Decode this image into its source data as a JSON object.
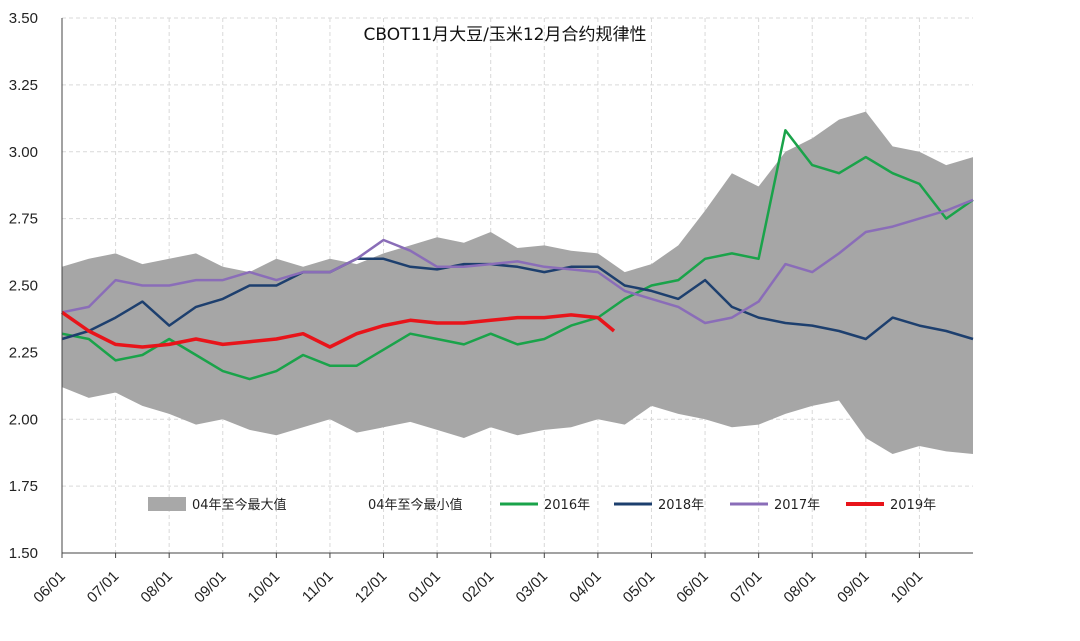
{
  "chart_data": {
    "type": "area",
    "title": "CBOT11月大豆/玉米12月合约规律性",
    "ylim": [
      1.5,
      3.5
    ],
    "yticks": [
      "1.50",
      "1.75",
      "2.00",
      "2.25",
      "2.50",
      "2.75",
      "3.00",
      "3.25",
      "3.50"
    ],
    "categories": [
      "06/01",
      "07/01",
      "08/01",
      "09/01",
      "10/01",
      "11/01",
      "12/01",
      "01/01",
      "02/01",
      "03/01",
      "04/01",
      "05/01",
      "06/01",
      "07/01",
      "08/01",
      "09/01",
      "10/01"
    ],
    "grid": true,
    "legend_position": "bottom",
    "band": {
      "x": [
        0,
        0.5,
        1,
        1.5,
        2,
        2.5,
        3,
        3.5,
        4,
        4.5,
        5,
        5.5,
        6,
        6.5,
        7,
        7.5,
        8,
        8.5,
        9,
        9.5,
        10,
        10.5,
        11,
        11.5,
        12,
        12.5,
        13,
        13.5,
        14,
        14.5,
        15,
        15.5,
        16,
        16.5,
        17
      ],
      "upper": [
        2.57,
        2.6,
        2.62,
        2.58,
        2.6,
        2.62,
        2.57,
        2.55,
        2.6,
        2.57,
        2.6,
        2.58,
        2.62,
        2.65,
        2.68,
        2.66,
        2.7,
        2.64,
        2.65,
        2.63,
        2.62,
        2.55,
        2.58,
        2.65,
        2.78,
        2.92,
        2.87,
        3.0,
        3.05,
        3.12,
        3.15,
        3.02,
        3.0,
        2.95,
        2.98
      ],
      "lower": [
        2.12,
        2.08,
        2.1,
        2.05,
        2.02,
        1.98,
        2.0,
        1.96,
        1.94,
        1.97,
        2.0,
        1.95,
        1.97,
        1.99,
        1.96,
        1.93,
        1.97,
        1.94,
        1.96,
        1.97,
        2.0,
        1.98,
        2.05,
        2.02,
        2.0,
        1.97,
        1.98,
        2.02,
        2.05,
        2.07,
        1.93,
        1.87,
        1.9,
        1.88,
        1.87
      ]
    },
    "series": [
      {
        "name": "04年至今最大值",
        "color": "#a8a8a8",
        "kind": "band"
      },
      {
        "name": "04年至今最小值",
        "color": "#ffffff",
        "kind": "band-lower"
      },
      {
        "name": "2016年",
        "color": "#1aa34a",
        "x": [
          0,
          0.5,
          1,
          1.5,
          2,
          2.5,
          3,
          3.5,
          4,
          4.5,
          5,
          5.5,
          6,
          6.5,
          7,
          7.5,
          8,
          8.5,
          9,
          9.5,
          10,
          10.5,
          11,
          11.5,
          12,
          12.5,
          13,
          13.5,
          14,
          14.5,
          15,
          15.5,
          16,
          16.5,
          17
        ],
        "values": [
          2.32,
          2.3,
          2.22,
          2.24,
          2.3,
          2.24,
          2.18,
          2.15,
          2.18,
          2.24,
          2.2,
          2.2,
          2.26,
          2.32,
          2.3,
          2.28,
          2.32,
          2.28,
          2.3,
          2.35,
          2.38,
          2.45,
          2.5,
          2.52,
          2.6,
          2.62,
          2.6,
          3.08,
          2.95,
          2.92,
          2.98,
          2.92,
          2.88,
          2.75,
          2.82
        ]
      },
      {
        "name": "2018年",
        "color": "#1d3f6e",
        "x": [
          0,
          0.5,
          1,
          1.5,
          2,
          2.5,
          3,
          3.5,
          4,
          4.5,
          5,
          5.5,
          6,
          6.5,
          7,
          7.5,
          8,
          8.5,
          9,
          9.5,
          10,
          10.5,
          11,
          11.5,
          12,
          12.5,
          13,
          13.5,
          14,
          14.5,
          15,
          15.5,
          16,
          16.5,
          17
        ],
        "values": [
          2.3,
          2.33,
          2.38,
          2.44,
          2.35,
          2.42,
          2.45,
          2.5,
          2.5,
          2.55,
          2.55,
          2.6,
          2.6,
          2.57,
          2.56,
          2.58,
          2.58,
          2.57,
          2.55,
          2.57,
          2.57,
          2.5,
          2.48,
          2.45,
          2.52,
          2.42,
          2.38,
          2.36,
          2.35,
          2.33,
          2.3,
          2.38,
          2.35,
          2.33,
          2.3
        ]
      },
      {
        "name": "2017年",
        "color": "#8a6db8",
        "x": [
          0,
          0.5,
          1,
          1.5,
          2,
          2.5,
          3,
          3.5,
          4,
          4.5,
          5,
          5.5,
          6,
          6.5,
          7,
          7.5,
          8,
          8.5,
          9,
          9.5,
          10,
          10.5,
          11,
          11.5,
          12,
          12.5,
          13,
          13.5,
          14,
          14.5,
          15,
          15.5,
          16,
          16.5,
          17
        ],
        "values": [
          2.4,
          2.42,
          2.52,
          2.5,
          2.5,
          2.52,
          2.52,
          2.55,
          2.52,
          2.55,
          2.55,
          2.6,
          2.67,
          2.63,
          2.57,
          2.57,
          2.58,
          2.59,
          2.57,
          2.56,
          2.55,
          2.48,
          2.45,
          2.42,
          2.36,
          2.38,
          2.44,
          2.58,
          2.55,
          2.62,
          2.7,
          2.72,
          2.75,
          2.78,
          2.82
        ]
      },
      {
        "name": "2019年",
        "color": "#e8141a",
        "x": [
          0,
          0.5,
          1,
          1.5,
          2,
          2.5,
          3,
          3.5,
          4,
          4.5,
          5,
          5.5,
          6,
          6.5,
          7,
          7.5,
          8,
          8.5,
          9,
          9.5,
          10,
          10.3
        ],
        "values": [
          2.4,
          2.33,
          2.28,
          2.27,
          2.28,
          2.3,
          2.28,
          2.29,
          2.3,
          2.32,
          2.27,
          2.32,
          2.35,
          2.37,
          2.36,
          2.36,
          2.37,
          2.38,
          2.38,
          2.39,
          2.38,
          2.33
        ]
      }
    ]
  }
}
